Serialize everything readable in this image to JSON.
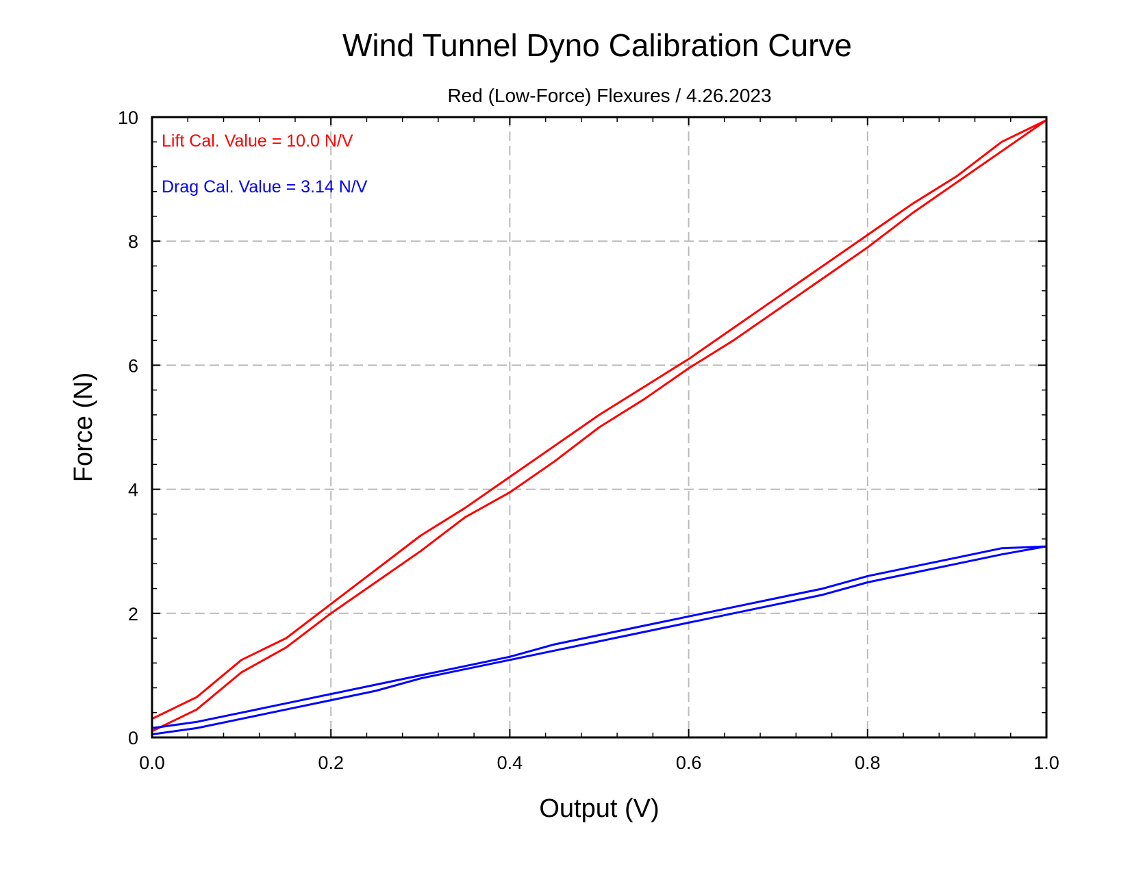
{
  "chart_data": {
    "type": "line",
    "title": "Wind Tunnel Dyno Calibration Curve",
    "subtitle": "Red (Low-Force) Flexures / 4.26.2023",
    "xlabel": "Output (V)",
    "ylabel": "Force (N)",
    "xlim": [
      0.0,
      1.0
    ],
    "ylim": [
      0,
      10
    ],
    "x_ticks": [
      "0.0",
      "0.2",
      "0.4",
      "0.6",
      "0.8",
      "1.0"
    ],
    "y_ticks": [
      "0",
      "2",
      "4",
      "6",
      "8",
      "10"
    ],
    "grid": true,
    "annotations": [
      {
        "text": "Lift Cal. Value = 10.0 N/V",
        "color": "#ff0000"
      },
      {
        "text": "Drag Cal. Value = 3.14 N/V",
        "color": "#0000ff"
      }
    ],
    "series": [
      {
        "color": "#ff0000",
        "x": [
          0.0,
          0.05,
          0.1,
          0.15,
          0.2,
          0.25,
          0.3,
          0.35,
          0.4,
          0.45,
          0.5,
          0.55,
          0.6,
          0.65,
          0.7,
          0.75,
          0.8,
          0.85,
          0.9,
          0.95,
          1.0,
          0.95,
          0.9,
          0.85,
          0.8,
          0.75,
          0.7,
          0.65,
          0.6,
          0.55,
          0.5,
          0.45,
          0.4,
          0.35,
          0.3,
          0.25,
          0.2,
          0.15,
          0.1,
          0.05,
          0.0
        ],
        "y": [
          0.1,
          0.45,
          1.05,
          1.45,
          2.0,
          2.5,
          3.0,
          3.55,
          3.95,
          4.45,
          5.0,
          5.45,
          5.95,
          6.4,
          6.9,
          7.4,
          7.9,
          8.45,
          8.95,
          9.45,
          9.95,
          9.6,
          9.05,
          8.6,
          8.1,
          7.6,
          7.1,
          6.6,
          6.1,
          5.65,
          5.2,
          4.7,
          4.2,
          3.7,
          3.25,
          2.7,
          2.15,
          1.6,
          1.25,
          0.65,
          0.3
        ]
      },
      {
        "color": "#0000ff",
        "x": [
          0.0,
          0.05,
          0.1,
          0.15,
          0.2,
          0.25,
          0.3,
          0.35,
          0.4,
          0.45,
          0.5,
          0.55,
          0.6,
          0.65,
          0.7,
          0.75,
          0.8,
          0.85,
          0.9,
          0.95,
          1.0,
          0.95,
          0.9,
          0.85,
          0.8,
          0.75,
          0.7,
          0.65,
          0.6,
          0.55,
          0.5,
          0.45,
          0.4,
          0.35,
          0.3,
          0.25,
          0.2,
          0.15,
          0.1,
          0.05,
          0.0
        ],
        "y": [
          0.05,
          0.15,
          0.3,
          0.45,
          0.6,
          0.75,
          0.95,
          1.1,
          1.25,
          1.4,
          1.55,
          1.7,
          1.85,
          2.0,
          2.15,
          2.3,
          2.5,
          2.65,
          2.8,
          2.95,
          3.08,
          3.05,
          2.9,
          2.75,
          2.6,
          2.4,
          2.25,
          2.1,
          1.95,
          1.8,
          1.65,
          1.5,
          1.3,
          1.15,
          1.0,
          0.85,
          0.7,
          0.55,
          0.4,
          0.25,
          0.15
        ]
      }
    ]
  }
}
